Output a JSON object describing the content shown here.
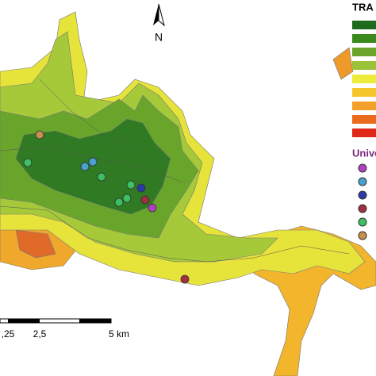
{
  "north_arrow": {
    "label": "N"
  },
  "legend": {
    "title": "TRA",
    "section": "Unive"
  },
  "scale_bar": {
    "labels": [
      ",25",
      "2,5",
      "5 km"
    ]
  }
}
